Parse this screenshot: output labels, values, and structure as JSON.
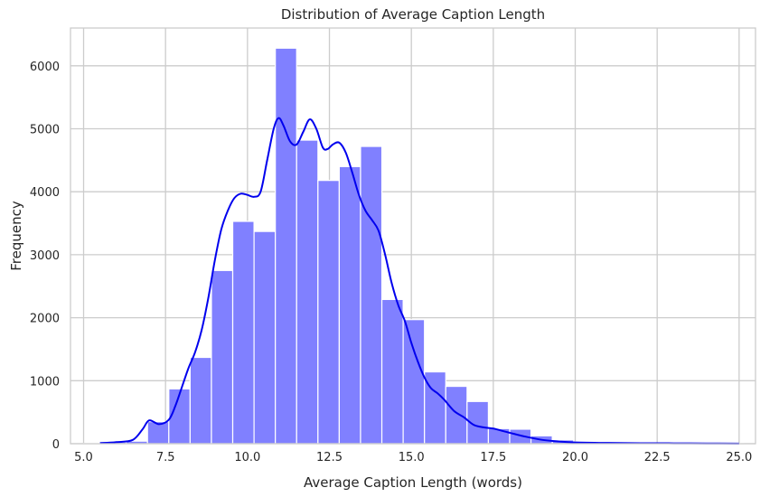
{
  "chart_data": {
    "type": "bar",
    "title": "Distribution of Average Caption Length",
    "xlabel": "Average Caption Length (words)",
    "ylabel": "Frequency",
    "xlim": [
      4.6,
      25.5
    ],
    "ylim": [
      0,
      6600
    ],
    "grid": true,
    "legend": "none",
    "x_ticks": [
      5.0,
      7.5,
      10.0,
      12.5,
      15.0,
      17.5,
      20.0,
      22.5,
      25.0
    ],
    "x_tick_labels": [
      "5.0",
      "7.5",
      "10.0",
      "12.5",
      "15.0",
      "17.5",
      "20.0",
      "22.5",
      "25.0"
    ],
    "y_ticks": [
      0,
      1000,
      2000,
      3000,
      4000,
      5000,
      6000
    ],
    "y_tick_labels": [
      "0",
      "1000",
      "2000",
      "3000",
      "4000",
      "5000",
      "6000"
    ],
    "histogram": {
      "bin_edges": [
        5.0,
        5.65,
        6.3,
        6.95,
        7.6,
        8.25,
        8.9,
        9.55,
        10.2,
        10.85,
        11.5,
        12.15,
        12.8,
        13.45,
        14.1,
        14.75,
        15.4,
        16.05,
        16.7,
        17.35,
        18.0,
        18.65,
        19.3,
        19.95,
        20.6,
        21.25,
        21.9,
        22.55,
        23.2,
        23.85,
        24.5,
        25.15
      ],
      "counts": [
        5,
        25,
        40,
        350,
        870,
        1370,
        2750,
        3530,
        3370,
        6280,
        4820,
        4180,
        4400,
        4720,
        2290,
        1970,
        1140,
        910,
        670,
        240,
        230,
        125,
        60,
        30,
        15,
        10,
        5,
        5,
        3,
        3,
        2
      ]
    },
    "kde": {
      "x": [
        5.5,
        6.0,
        6.5,
        6.8,
        7.0,
        7.3,
        7.6,
        7.8,
        8.0,
        8.2,
        8.4,
        8.6,
        8.8,
        9.0,
        9.2,
        9.4,
        9.6,
        9.8,
        10.0,
        10.2,
        10.4,
        10.6,
        10.8,
        10.95,
        11.1,
        11.3,
        11.5,
        11.7,
        11.9,
        12.1,
        12.3,
        12.45,
        12.6,
        12.8,
        13.0,
        13.2,
        13.4,
        13.6,
        13.8,
        14.0,
        14.2,
        14.4,
        14.6,
        14.8,
        15.0,
        15.2,
        15.4,
        15.6,
        15.8,
        16.0,
        16.3,
        16.6,
        16.9,
        17.2,
        17.5,
        17.8,
        18.1,
        18.5,
        19.0,
        19.5,
        20.0,
        21.0,
        22.0,
        23.0,
        24.0,
        25.0
      ],
      "y": [
        10,
        25,
        60,
        230,
        370,
        310,
        380,
        600,
        900,
        1200,
        1450,
        1800,
        2300,
        2900,
        3400,
        3700,
        3900,
        3970,
        3950,
        3920,
        4000,
        4500,
        5000,
        5170,
        5050,
        4800,
        4750,
        4950,
        5150,
        5000,
        4700,
        4680,
        4750,
        4780,
        4620,
        4300,
        3950,
        3700,
        3550,
        3380,
        3000,
        2550,
        2200,
        1950,
        1600,
        1300,
        1050,
        880,
        800,
        700,
        520,
        420,
        300,
        260,
        240,
        200,
        160,
        110,
        60,
        35,
        20,
        12,
        8,
        6,
        4,
        2
      ]
    },
    "colors": {
      "bar_fill": "#8080ff",
      "bar_edge": "#ffffff",
      "kde_line": "#0000ee",
      "grid": "#cccccc",
      "axes_edge": "#cccccc"
    }
  }
}
